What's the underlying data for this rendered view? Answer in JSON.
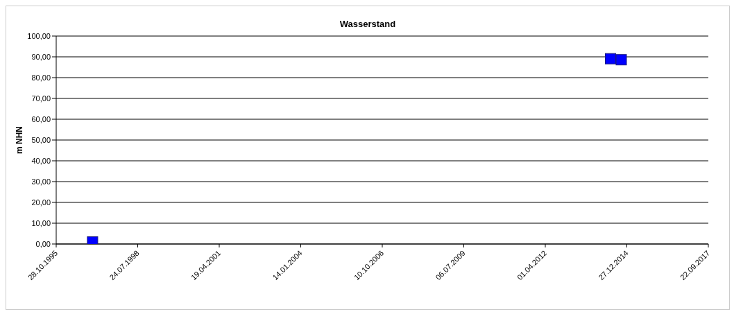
{
  "chart_data": {
    "type": "scatter",
    "title": "Wasserstand",
    "ylabel": "m NHN",
    "x": [
      "1997-01-16",
      "2014-06-10",
      "2014-10-20"
    ],
    "series": [
      {
        "color": "#0000ff",
        "values": [
          1,
          89.1,
          88.6
        ]
      }
    ],
    "xlim": [
      "1995-10-28",
      "2017-09-22"
    ],
    "xticks": [
      {
        "value": "1995-10-28",
        "label": "28.10.1995"
      },
      {
        "value": "1998-07-24",
        "label": "24.07.1998"
      },
      {
        "value": "2001-04-19",
        "label": "19.04.2001"
      },
      {
        "value": "2004-01-14",
        "label": "14.01.2004"
      },
      {
        "value": "2006-10-10",
        "label": "10.10.2006"
      },
      {
        "value": "2009-07-06",
        "label": "06.07.2009"
      },
      {
        "value": "2012-04-01",
        "label": "01.04.2012"
      },
      {
        "value": "2014-12-27",
        "label": "27.12.2014"
      },
      {
        "value": "2017-09-22",
        "label": "22.09.2017"
      }
    ],
    "ylim": [
      0,
      100
    ],
    "yticks": [
      {
        "value": 0,
        "label": "0,00"
      },
      {
        "value": 10,
        "label": "10,00"
      },
      {
        "value": 20,
        "label": "20,00"
      },
      {
        "value": 30,
        "label": "30,00"
      },
      {
        "value": 40,
        "label": "40,00"
      },
      {
        "value": 50,
        "label": "50,00"
      },
      {
        "value": 60,
        "label": "60,00"
      },
      {
        "value": 70,
        "label": "70,00"
      },
      {
        "value": 80,
        "label": "80,00"
      },
      {
        "value": 90,
        "label": "90,00"
      },
      {
        "value": 100,
        "label": "100,00"
      }
    ],
    "grid": "y",
    "marker": "square",
    "legend": false
  }
}
